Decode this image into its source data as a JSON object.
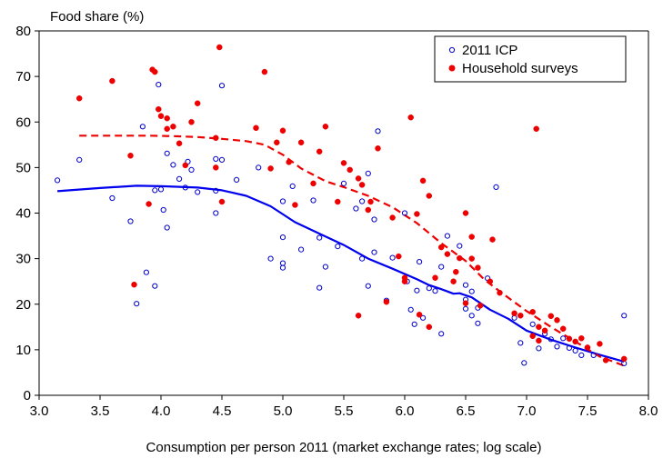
{
  "chart_data": {
    "type": "scatter",
    "ylabel": "Food share (%)",
    "xlabel": "Consumption per person 2011 (market exchange rates; log scale)",
    "xlim": [
      3.0,
      8.0
    ],
    "ylim": [
      0,
      80
    ],
    "x_ticks": [
      "3.0",
      "3.5",
      "4.0",
      "4.5",
      "5.0",
      "5.5",
      "6.0",
      "6.5",
      "7.0",
      "7.5",
      "8.0"
    ],
    "y_ticks": [
      "0",
      "10",
      "20",
      "30",
      "40",
      "50",
      "60",
      "70",
      "80"
    ],
    "legend_position": "top-right",
    "grid": false,
    "series": [
      {
        "name": "2011 ICP",
        "marker": "open-circle",
        "color": "#0000cc",
        "points": [
          [
            3.15,
            47.2
          ],
          [
            3.33,
            51.7
          ],
          [
            3.6,
            43.3
          ],
          [
            3.75,
            38.2
          ],
          [
            3.8,
            20.1
          ],
          [
            3.85,
            59
          ],
          [
            3.88,
            27
          ],
          [
            3.95,
            24
          ],
          [
            3.95,
            45
          ],
          [
            4.0,
            45.2
          ],
          [
            3.98,
            68.2
          ],
          [
            4.02,
            40.7
          ],
          [
            4.05,
            36.8
          ],
          [
            4.05,
            53.1
          ],
          [
            4.1,
            50.6
          ],
          [
            4.15,
            47.5
          ],
          [
            4.2,
            45.6
          ],
          [
            4.22,
            51.3
          ],
          [
            4.25,
            49.5
          ],
          [
            4.3,
            44.6
          ],
          [
            4.45,
            51.9
          ],
          [
            4.45,
            40
          ],
          [
            4.45,
            44.9
          ],
          [
            4.5,
            51.7
          ],
          [
            4.5,
            68
          ],
          [
            4.62,
            47.3
          ],
          [
            4.8,
            50
          ],
          [
            4.9,
            30
          ],
          [
            5.0,
            42.6
          ],
          [
            5.0,
            34.7
          ],
          [
            5.0,
            29
          ],
          [
            5.0,
            28
          ],
          [
            5.08,
            45.9
          ],
          [
            5.15,
            32
          ],
          [
            5.25,
            42.8
          ],
          [
            5.3,
            34.6
          ],
          [
            5.3,
            23.6
          ],
          [
            5.35,
            28.2
          ],
          [
            5.45,
            32.7
          ],
          [
            5.5,
            46.5
          ],
          [
            5.6,
            41
          ],
          [
            5.65,
            30
          ],
          [
            5.65,
            42.6
          ],
          [
            5.7,
            48.7
          ],
          [
            5.7,
            24
          ],
          [
            5.75,
            31.4
          ],
          [
            5.75,
            38.6
          ],
          [
            5.78,
            58
          ],
          [
            5.85,
            20.8
          ],
          [
            5.9,
            30.2
          ],
          [
            6.0,
            40
          ],
          [
            6.02,
            25
          ],
          [
            6.05,
            18.8
          ],
          [
            6.08,
            15.6
          ],
          [
            6.1,
            23
          ],
          [
            6.12,
            29.3
          ],
          [
            6.15,
            17
          ],
          [
            6.2,
            23.5
          ],
          [
            6.25,
            22.9
          ],
          [
            6.3,
            13.5
          ],
          [
            6.3,
            28.2
          ],
          [
            6.35,
            35
          ],
          [
            6.45,
            32.8
          ],
          [
            6.5,
            19
          ],
          [
            6.5,
            21
          ],
          [
            6.5,
            24.2
          ],
          [
            6.55,
            17.5
          ],
          [
            6.55,
            22.8
          ],
          [
            6.6,
            15.8
          ],
          [
            6.6,
            19.2
          ],
          [
            6.68,
            25.7
          ],
          [
            6.75,
            45.7
          ],
          [
            6.95,
            11.5
          ],
          [
            6.98,
            7.1
          ],
          [
            7.05,
            15.6
          ],
          [
            7.1,
            10.3
          ],
          [
            7.15,
            13.5
          ],
          [
            7.2,
            12.3
          ],
          [
            7.25,
            10.7
          ],
          [
            7.3,
            12.5
          ],
          [
            7.35,
            10.4
          ],
          [
            7.4,
            9.8
          ],
          [
            7.45,
            8.8
          ],
          [
            7.55,
            8.8
          ],
          [
            7.8,
            7
          ],
          [
            7.8,
            17.5
          ],
          [
            6.9,
            17
          ]
        ]
      },
      {
        "name": "Household surveys",
        "marker": "filled-circle",
        "color": "#ee0000",
        "points": [
          [
            3.33,
            65.2
          ],
          [
            3.6,
            69
          ],
          [
            3.75,
            52.6
          ],
          [
            3.78,
            24.3
          ],
          [
            3.9,
            42
          ],
          [
            3.93,
            71.5
          ],
          [
            3.95,
            71
          ],
          [
            3.98,
            62.8
          ],
          [
            4.0,
            61.3
          ],
          [
            4.05,
            60.8
          ],
          [
            4.05,
            58.5
          ],
          [
            4.1,
            59
          ],
          [
            4.15,
            55.3
          ],
          [
            4.2,
            50.5
          ],
          [
            4.25,
            60
          ],
          [
            4.3,
            64.1
          ],
          [
            4.45,
            50
          ],
          [
            4.45,
            56.5
          ],
          [
            4.48,
            76.4
          ],
          [
            4.5,
            42.5
          ],
          [
            4.78,
            58.7
          ],
          [
            4.85,
            71
          ],
          [
            4.9,
            49.8
          ],
          [
            4.95,
            55.5
          ],
          [
            5.0,
            58.1
          ],
          [
            5.05,
            51.2
          ],
          [
            5.1,
            41.8
          ],
          [
            5.15,
            55.5
          ],
          [
            5.25,
            46.5
          ],
          [
            5.3,
            53.5
          ],
          [
            5.35,
            59
          ],
          [
            5.45,
            42.5
          ],
          [
            5.5,
            51
          ],
          [
            5.55,
            49.5
          ],
          [
            5.62,
            17.5
          ],
          [
            5.62,
            47.6
          ],
          [
            5.65,
            46.2
          ],
          [
            5.7,
            40.7
          ],
          [
            5.72,
            42.5
          ],
          [
            5.78,
            54.2
          ],
          [
            5.85,
            20.5
          ],
          [
            5.9,
            39
          ],
          [
            5.95,
            30.5
          ],
          [
            6.0,
            25.8
          ],
          [
            6.05,
            61
          ],
          [
            6.1,
            39.8
          ],
          [
            6.12,
            17.7
          ],
          [
            6.15,
            47.1
          ],
          [
            6.2,
            43.8
          ],
          [
            6.2,
            15
          ],
          [
            6.25,
            25.8
          ],
          [
            6.3,
            32.5
          ],
          [
            6.35,
            31
          ],
          [
            6.4,
            25
          ],
          [
            6.42,
            27.1
          ],
          [
            6.45,
            30.1
          ],
          [
            6.5,
            40
          ],
          [
            6.5,
            20.2
          ],
          [
            6.55,
            34.8
          ],
          [
            6.55,
            30
          ],
          [
            6.6,
            28
          ],
          [
            6.62,
            19.7
          ],
          [
            6.7,
            25
          ],
          [
            6.72,
            34.2
          ],
          [
            6.78,
            22.5
          ],
          [
            6.95,
            17.5
          ],
          [
            7.05,
            18.3
          ],
          [
            7.05,
            13
          ],
          [
            7.08,
            58.5
          ],
          [
            7.1,
            15
          ],
          [
            7.1,
            12
          ],
          [
            7.15,
            14.2
          ],
          [
            7.2,
            17.4
          ],
          [
            7.25,
            16.5
          ],
          [
            7.3,
            14.6
          ],
          [
            7.35,
            12.4
          ],
          [
            7.4,
            11.8
          ],
          [
            7.45,
            12.5
          ],
          [
            7.5,
            10.5
          ],
          [
            7.6,
            11.3
          ],
          [
            7.65,
            7.7
          ],
          [
            7.8,
            8
          ],
          [
            6.9,
            18
          ],
          [
            6.0,
            25
          ]
        ]
      },
      {
        "name": "",
        "style": "solid-line",
        "color": "#0000ee",
        "points": [
          [
            3.15,
            44.8
          ],
          [
            3.5,
            45.5
          ],
          [
            3.8,
            46
          ],
          [
            4.0,
            45.9
          ],
          [
            4.3,
            45.6
          ],
          [
            4.5,
            45
          ],
          [
            4.7,
            43.8
          ],
          [
            4.9,
            41.5
          ],
          [
            5.1,
            38
          ],
          [
            5.3,
            35.5
          ],
          [
            5.5,
            33
          ],
          [
            5.7,
            30
          ],
          [
            5.9,
            27.8
          ],
          [
            6.1,
            25.5
          ],
          [
            6.2,
            24.2
          ],
          [
            6.3,
            23.3
          ],
          [
            6.4,
            22.3
          ],
          [
            6.45,
            22.4
          ],
          [
            6.55,
            21.5
          ],
          [
            6.7,
            18.8
          ],
          [
            6.85,
            16.8
          ],
          [
            7.0,
            14.2
          ],
          [
            7.2,
            12.2
          ],
          [
            7.4,
            10.5
          ],
          [
            7.6,
            8.9
          ],
          [
            7.8,
            7.4
          ]
        ]
      },
      {
        "name": "",
        "style": "dashed-line",
        "color": "#ee0000",
        "points": [
          [
            3.33,
            57
          ],
          [
            3.6,
            57
          ],
          [
            3.9,
            57
          ],
          [
            4.1,
            56.9
          ],
          [
            4.3,
            56.7
          ],
          [
            4.5,
            56.3
          ],
          [
            4.7,
            55.8
          ],
          [
            4.85,
            55
          ],
          [
            5.0,
            52.8
          ],
          [
            5.15,
            49.8
          ],
          [
            5.35,
            47
          ],
          [
            5.5,
            45.7
          ],
          [
            5.7,
            43.8
          ],
          [
            5.9,
            41.3
          ],
          [
            6.1,
            37.8
          ],
          [
            6.3,
            33.4
          ],
          [
            6.5,
            29.5
          ],
          [
            6.65,
            25.5
          ],
          [
            6.8,
            22.4
          ],
          [
            7.0,
            18.5
          ],
          [
            7.2,
            15
          ],
          [
            7.4,
            11.8
          ],
          [
            7.6,
            8.5
          ],
          [
            7.8,
            6.5
          ]
        ]
      }
    ]
  }
}
